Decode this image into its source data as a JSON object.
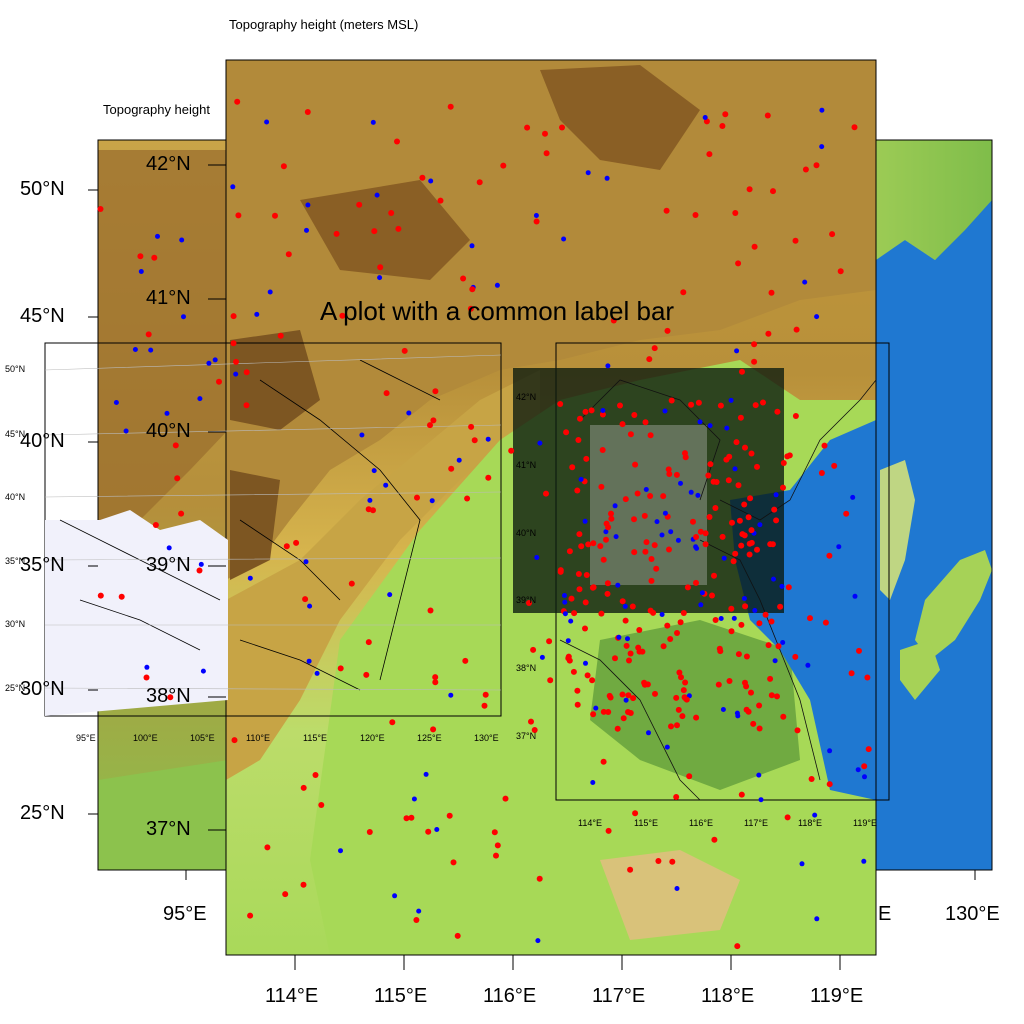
{
  "header": {
    "top_title": "Topography height   (meters MSL)",
    "left_title": "Topography height",
    "main_title": "A plot with a common label bar"
  },
  "panels": {
    "outer_large": {
      "description": "Wide domain terrain map",
      "lat_labels": [
        "50°N",
        "45°N",
        "40°N",
        "35°N",
        "30°N",
        "25°N"
      ],
      "lon_labels": [
        "95°E",
        "E",
        "130°E"
      ]
    },
    "main_domain": {
      "lat_labels": [
        "42°N",
        "41°N",
        "40°N",
        "39°N",
        "38°N",
        "37°N"
      ],
      "lon_labels": [
        "114°E",
        "115°E",
        "116°E",
        "117°E",
        "118°E",
        "119°E"
      ]
    },
    "inset_left": {
      "lat_labels": [
        "50°N",
        "45°N",
        "40°N",
        "35°N",
        "30°N",
        "25°N"
      ],
      "lon_labels": [
        "95°E",
        "100°E",
        "105°E",
        "110°E",
        "115°E",
        "120°E",
        "125°E",
        "130°E"
      ]
    },
    "inset_right": {
      "lat_labels": [
        "42°N",
        "41°N",
        "40°N",
        "39°N",
        "38°N",
        "37°N"
      ],
      "lon_labels": [
        "114°E",
        "115°E",
        "116°E",
        "117°E",
        "118°E",
        "119°E"
      ]
    }
  },
  "colors": {
    "sea": "#1f78d1",
    "lowland": "#a7d957",
    "lowland_dark": "#5e9a3a",
    "hills": "#d8b84a",
    "mountains": "#9a6d2c",
    "high_peaks": "#6e4a1d",
    "inset_land": "#f1f1fb",
    "red_points": "#ff0000",
    "blue_points": "#0000ff"
  },
  "points": {
    "description": "Observation station markers",
    "colors": [
      "red",
      "blue"
    ]
  }
}
